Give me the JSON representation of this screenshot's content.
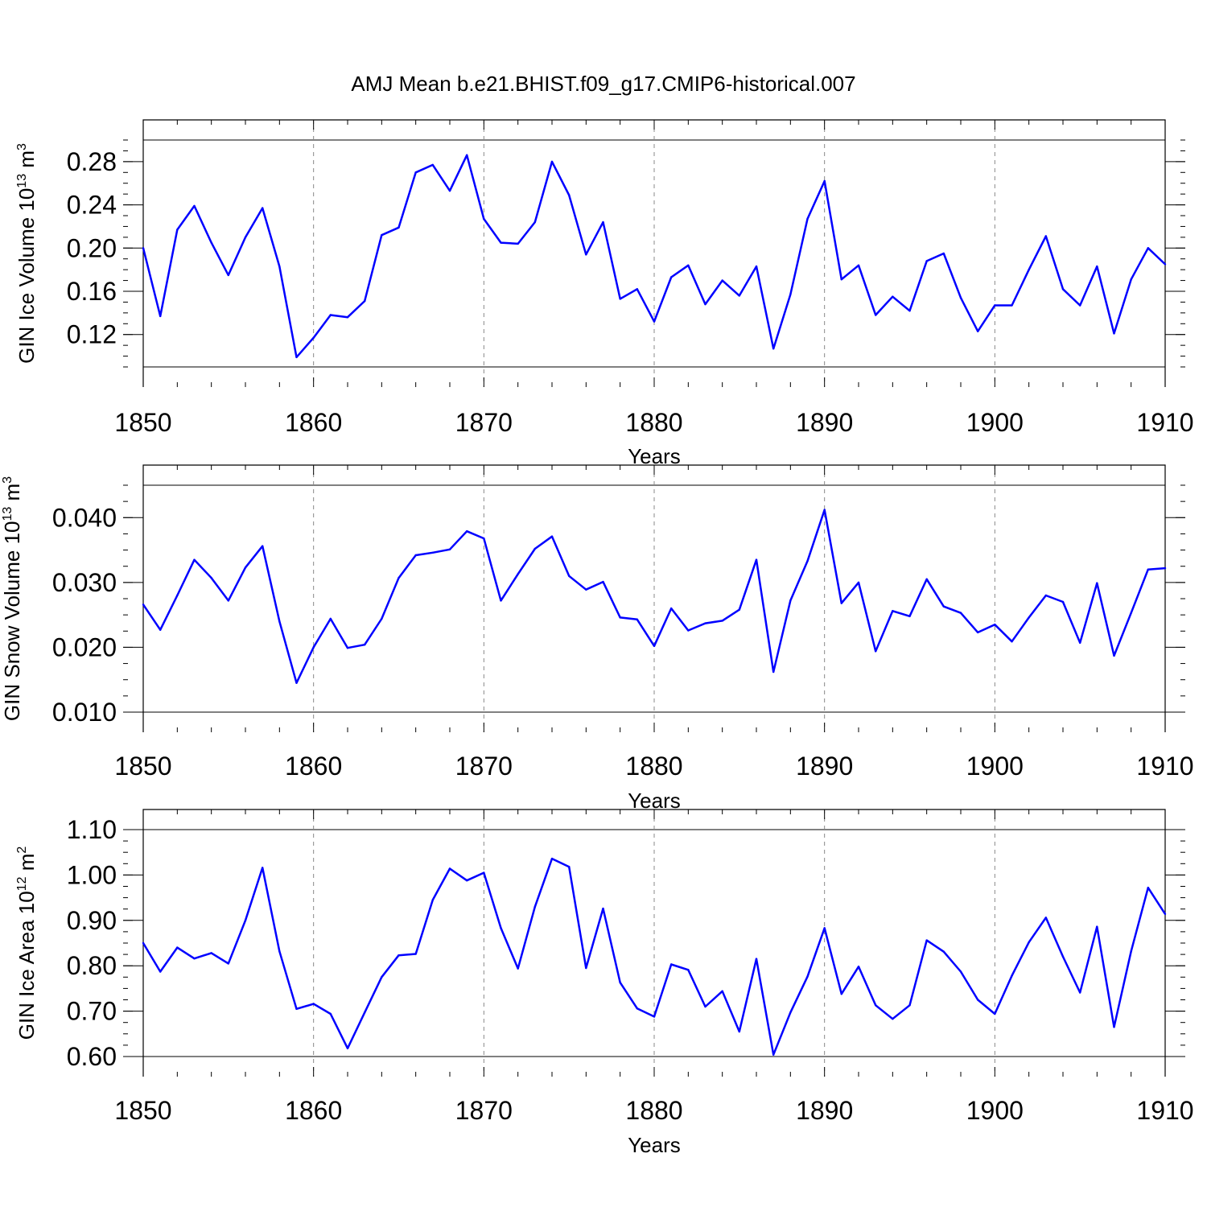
{
  "title": "AMJ Mean b.e21.BHIST.f09_g17.CMIP6-historical.007",
  "series_color": "#0000ff",
  "chart_data": [
    {
      "type": "line",
      "xlabel": "Years",
      "ylabel": {
        "main": "GIN Ice Volume 10",
        "sup": "13",
        "unit": " m",
        "unit_sup": "3"
      },
      "xlim": [
        1850,
        1910
      ],
      "xticks": [
        1850,
        1860,
        1870,
        1880,
        1890,
        1900,
        1910
      ],
      "xtick_labels": [
        "1850",
        "1860",
        "1870",
        "1880",
        "1890",
        "1900",
        "1910"
      ],
      "ylim": [
        0.09,
        0.3
      ],
      "yticks": [
        0.12,
        0.16,
        0.2,
        0.24,
        0.28
      ],
      "ytick_labels": [
        "0.12",
        "0.16",
        "0.20",
        "0.24",
        "0.28"
      ],
      "grid": "vertical dashed at decades",
      "x": [
        1850,
        1851,
        1852,
        1853,
        1854,
        1855,
        1856,
        1857,
        1858,
        1859,
        1860,
        1861,
        1862,
        1863,
        1864,
        1865,
        1866,
        1867,
        1868,
        1869,
        1870,
        1871,
        1872,
        1873,
        1874,
        1875,
        1876,
        1877,
        1878,
        1879,
        1880,
        1881,
        1882,
        1883,
        1884,
        1885,
        1886,
        1887,
        1888,
        1889,
        1890,
        1891,
        1892,
        1893,
        1894,
        1895,
        1896,
        1897,
        1898,
        1899,
        1900,
        1901,
        1902,
        1903,
        1904,
        1905,
        1906,
        1907,
        1908,
        1909,
        1910
      ],
      "values": [
        0.2,
        0.137,
        0.217,
        0.239,
        0.205,
        0.175,
        0.21,
        0.237,
        0.183,
        0.099,
        0.117,
        0.138,
        0.136,
        0.151,
        0.212,
        0.219,
        0.27,
        0.277,
        0.253,
        0.286,
        0.227,
        0.205,
        0.204,
        0.224,
        0.28,
        0.249,
        0.194,
        0.224,
        0.153,
        0.162,
        0.132,
        0.173,
        0.184,
        0.148,
        0.17,
        0.156,
        0.183,
        0.107,
        0.157,
        0.227,
        0.262,
        0.171,
        0.184,
        0.138,
        0.155,
        0.142,
        0.188,
        0.195,
        0.154,
        0.123,
        0.147,
        0.147,
        0.18,
        0.211,
        0.162,
        0.147,
        0.183,
        0.121,
        0.171,
        0.2,
        0.185
      ]
    },
    {
      "type": "line",
      "xlabel": "Years",
      "ylabel": {
        "main": "GIN Snow Volume 10",
        "sup": "13",
        "unit": " m",
        "unit_sup": "3"
      },
      "xlim": [
        1850,
        1910
      ],
      "xticks": [
        1850,
        1860,
        1870,
        1880,
        1890,
        1900,
        1910
      ],
      "xtick_labels": [
        "1850",
        "1860",
        "1870",
        "1880",
        "1890",
        "1900",
        "1910"
      ],
      "ylim": [
        0.01,
        0.045
      ],
      "yticks": [
        0.01,
        0.02,
        0.03,
        0.04
      ],
      "ytick_labels": [
        "0.010",
        "0.020",
        "0.030",
        "0.040"
      ],
      "grid": "vertical dashed at decades",
      "x": [
        1850,
        1851,
        1852,
        1853,
        1854,
        1855,
        1856,
        1857,
        1858,
        1859,
        1860,
        1861,
        1862,
        1863,
        1864,
        1865,
        1866,
        1867,
        1868,
        1869,
        1870,
        1871,
        1872,
        1873,
        1874,
        1875,
        1876,
        1877,
        1878,
        1879,
        1880,
        1881,
        1882,
        1883,
        1884,
        1885,
        1886,
        1887,
        1888,
        1889,
        1890,
        1891,
        1892,
        1893,
        1894,
        1895,
        1896,
        1897,
        1898,
        1899,
        1900,
        1901,
        1902,
        1903,
        1904,
        1905,
        1906,
        1907,
        1908,
        1909,
        1910
      ],
      "values": [
        0.0266,
        0.0227,
        0.028,
        0.0335,
        0.0307,
        0.0272,
        0.0323,
        0.0356,
        0.024,
        0.0145,
        0.02,
        0.0244,
        0.0199,
        0.0204,
        0.0244,
        0.0307,
        0.0342,
        0.0346,
        0.0351,
        0.0379,
        0.0368,
        0.0272,
        0.0313,
        0.0352,
        0.0371,
        0.031,
        0.0289,
        0.0301,
        0.0246,
        0.0243,
        0.0202,
        0.026,
        0.0226,
        0.0237,
        0.0241,
        0.0258,
        0.0335,
        0.0162,
        0.0272,
        0.0333,
        0.0412,
        0.0268,
        0.03,
        0.0194,
        0.0256,
        0.0248,
        0.0305,
        0.0263,
        0.0253,
        0.0223,
        0.0235,
        0.0209,
        0.0246,
        0.028,
        0.027,
        0.0207,
        0.0299,
        0.0187,
        0.0253,
        0.032,
        0.0322
      ]
    },
    {
      "type": "line",
      "xlabel": "Years",
      "ylabel": {
        "main": "GIN Ice Area 10",
        "sup": "12",
        "unit": " m",
        "unit_sup": "2"
      },
      "xlim": [
        1850,
        1910
      ],
      "xticks": [
        1850,
        1860,
        1870,
        1880,
        1890,
        1900,
        1910
      ],
      "xtick_labels": [
        "1850",
        "1860",
        "1870",
        "1880",
        "1890",
        "1900",
        "1910"
      ],
      "ylim": [
        0.6,
        1.1
      ],
      "yticks": [
        0.6,
        0.7,
        0.8,
        0.9,
        1.0,
        1.1
      ],
      "ytick_labels": [
        "0.60",
        "0.70",
        "0.80",
        "0.90",
        "1.00",
        "1.10"
      ],
      "grid": "vertical dashed at decades",
      "x": [
        1850,
        1851,
        1852,
        1853,
        1854,
        1855,
        1856,
        1857,
        1858,
        1859,
        1860,
        1861,
        1862,
        1863,
        1864,
        1865,
        1866,
        1867,
        1868,
        1869,
        1870,
        1871,
        1872,
        1873,
        1874,
        1875,
        1876,
        1877,
        1878,
        1879,
        1880,
        1881,
        1882,
        1883,
        1884,
        1885,
        1886,
        1887,
        1888,
        1889,
        1890,
        1891,
        1892,
        1893,
        1894,
        1895,
        1896,
        1897,
        1898,
        1899,
        1900,
        1901,
        1902,
        1903,
        1904,
        1905,
        1906,
        1907,
        1908,
        1909,
        1910
      ],
      "values": [
        0.85,
        0.787,
        0.84,
        0.816,
        0.828,
        0.805,
        0.9,
        1.016,
        0.832,
        0.705,
        0.716,
        0.694,
        0.618,
        0.697,
        0.775,
        0.823,
        0.826,
        0.945,
        1.014,
        0.988,
        1.005,
        0.883,
        0.794,
        0.93,
        1.036,
        1.018,
        0.795,
        0.926,
        0.763,
        0.706,
        0.688,
        0.803,
        0.791,
        0.71,
        0.744,
        0.655,
        0.815,
        0.604,
        0.697,
        0.776,
        0.883,
        0.738,
        0.798,
        0.713,
        0.683,
        0.713,
        0.856,
        0.831,
        0.787,
        0.725,
        0.694,
        0.778,
        0.852,
        0.906,
        0.82,
        0.741,
        0.886,
        0.665,
        0.832,
        0.972,
        0.914
      ]
    }
  ]
}
